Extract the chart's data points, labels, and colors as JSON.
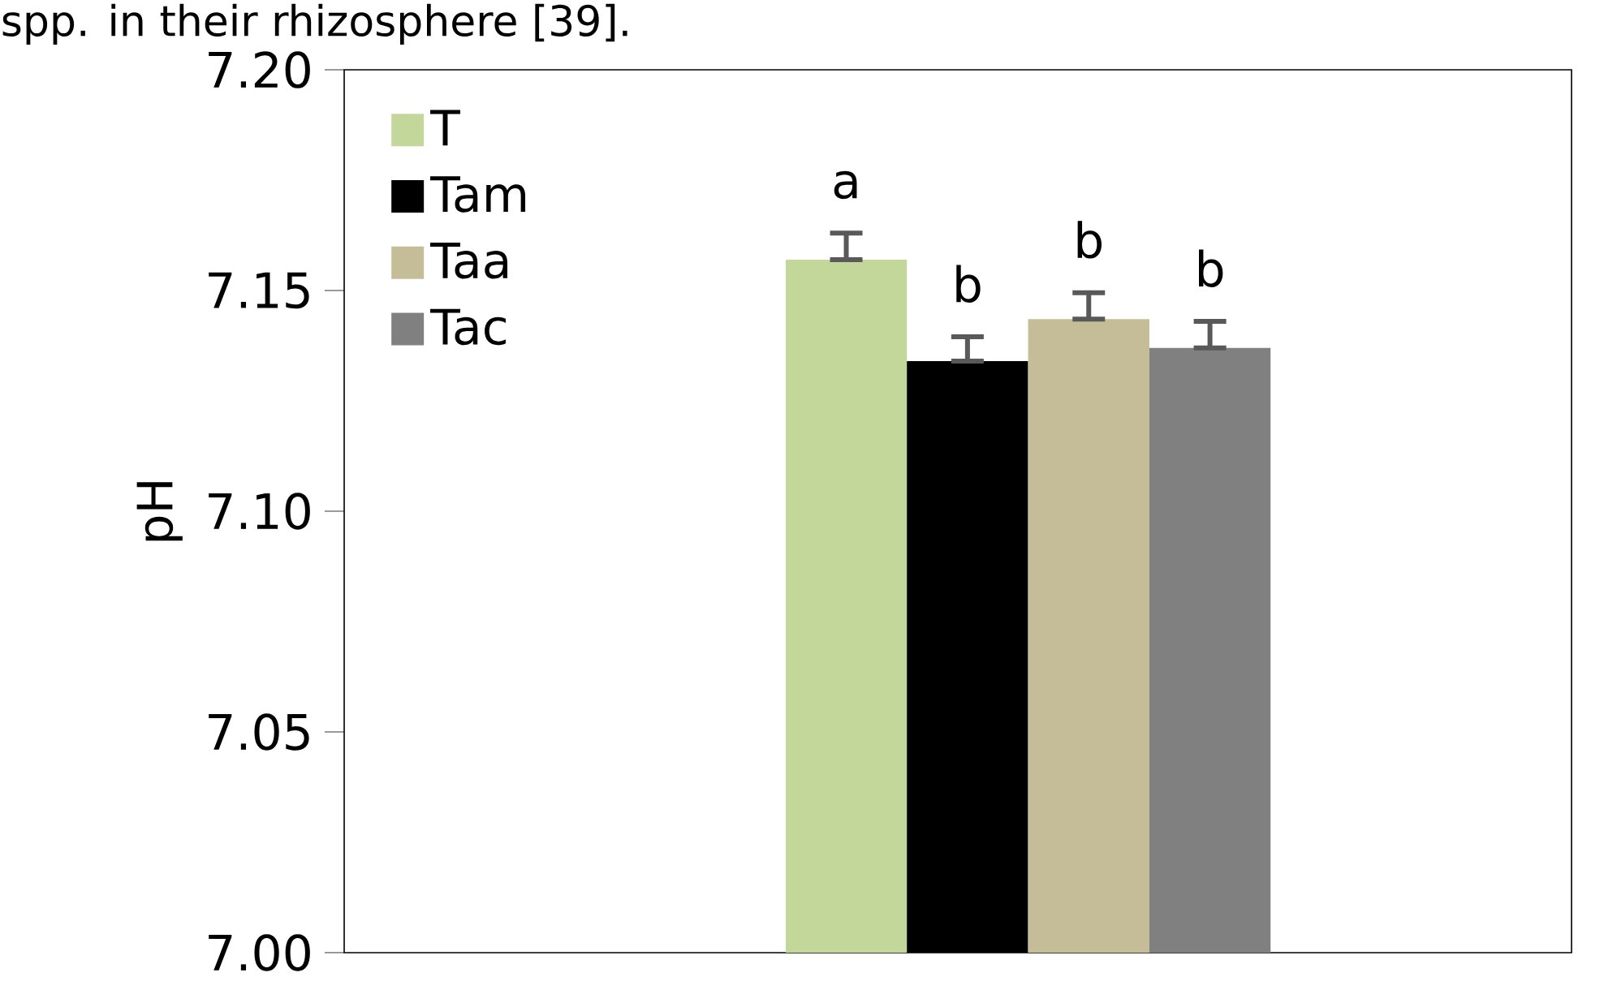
{
  "chart_data": {
    "type": "bar",
    "ylabel": "pH",
    "categories": [
      null
    ],
    "series": [
      {
        "name": "T",
        "color": "#c4d79b",
        "values": [
          7.157
        ],
        "errors": [
          [
            7.157,
            7.163
          ]
        ],
        "value_labels": [
          "a"
        ]
      },
      {
        "name": "Tam",
        "color": "#000000",
        "values": [
          7.134
        ],
        "errors": [
          [
            7.134,
            7.1395
          ]
        ],
        "value_labels": [
          "b"
        ]
      },
      {
        "name": "Taa",
        "color": "#c4bd97",
        "values": [
          7.1435
        ],
        "errors": [
          [
            7.1435,
            7.1495
          ]
        ],
        "value_labels": [
          "b"
        ]
      },
      {
        "name": "Tac",
        "color": "#808080",
        "values": [
          7.137
        ],
        "errors": [
          [
            7.137,
            7.143
          ]
        ],
        "value_labels": [
          "b"
        ]
      }
    ],
    "ylim": [
      7.0,
      7.2
    ],
    "yticks": [
      {
        "value": 7.0,
        "label": "7.00"
      },
      {
        "value": 7.05,
        "label": "7.05"
      },
      {
        "value": 7.1,
        "label": "7.10"
      },
      {
        "value": 7.15,
        "label": "7.15"
      },
      {
        "value": 7.2,
        "label": "7.20"
      }
    ],
    "grid": false,
    "legend": "top left",
    "annotations": [
      "spp. in their rhizosphere [39]."
    ]
  }
}
